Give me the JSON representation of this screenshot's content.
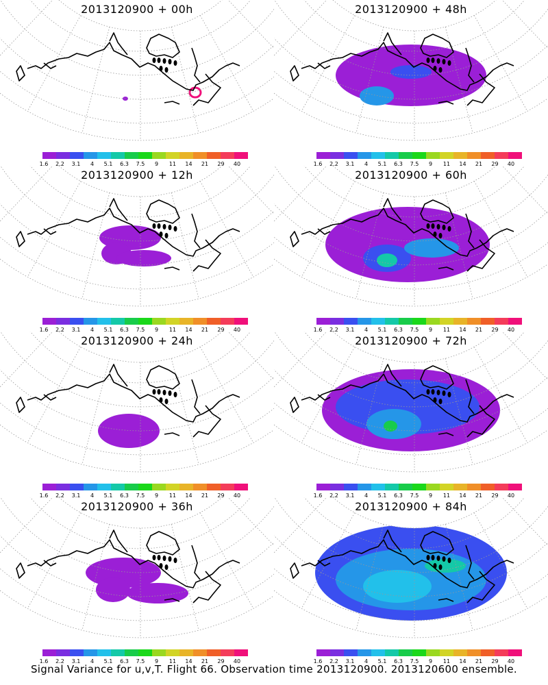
{
  "panels": [
    {
      "title": "2013120900 + 00h"
    },
    {
      "title": "2013120900 + 48h"
    },
    {
      "title": "2013120900 + 12h"
    },
    {
      "title": "2013120900 + 60h"
    },
    {
      "title": "2013120900 + 24h"
    },
    {
      "title": "2013120900 + 72h"
    },
    {
      "title": "2013120900 + 36h"
    },
    {
      "title": "2013120900 + 84h"
    }
  ],
  "colorbar": {
    "colors": [
      "#9b1fd6",
      "#7a2ee0",
      "#3a4ff0",
      "#2596e8",
      "#22c0ea",
      "#14c9a8",
      "#18cc4a",
      "#1ad81a",
      "#9ad820",
      "#d2d426",
      "#e8b428",
      "#f08f28",
      "#f05f28",
      "#f43c5a",
      "#f0107a"
    ],
    "labels": [
      "1.6",
      "2.2",
      "3.1",
      "4",
      "5.1",
      "6.3",
      "7.5",
      "9",
      "11",
      "14",
      "21",
      "29",
      "40"
    ]
  },
  "footer": {
    "text": "Signal Variance for u,v,T. Flight 66. Observation time 2013120900. 2013120600 ensemble."
  }
}
